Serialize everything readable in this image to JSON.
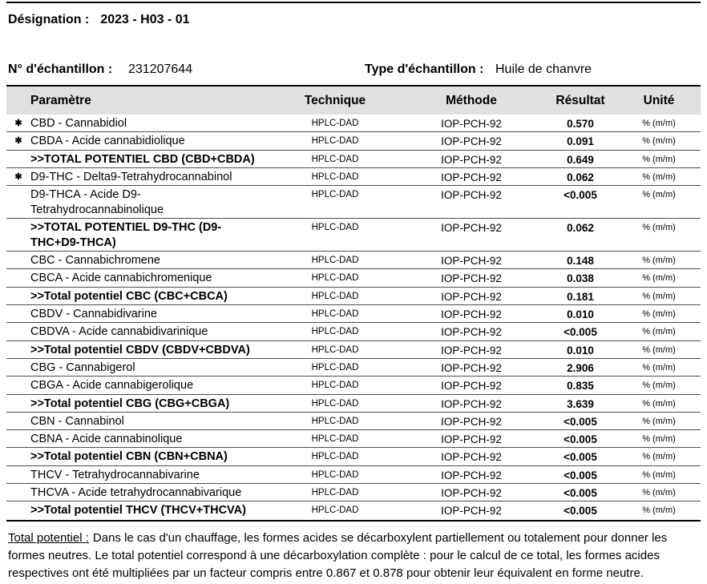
{
  "meta": {
    "designation_label": "Désignation :",
    "designation_value": "2023 - H03 - 01",
    "sample_number_label": "N° d'échantillon :",
    "sample_number_value": "231207644",
    "sample_type_label": "Type d'échantillon :",
    "sample_type_value": "Huile de chanvre"
  },
  "colors": {
    "header_bg": "#e0e0e0",
    "row_line": "#4d4d4d",
    "border_black": "#000000"
  },
  "table": {
    "star_marker": "✱",
    "headers": [
      "Paramètre",
      "Technique",
      "Méthode",
      "Résultat",
      "Unité"
    ],
    "rows": [
      {
        "star": true,
        "bold": false,
        "param": ">>",
        "technique": "HPLC-DAD",
        "methode": "IOP-PCH-92",
        "resultat": "0.570",
        "unite": "% (m/m)"
      },
      {
        "star": true,
        "bold": false,
        "param": ">>",
        "technique": "HPLC-DAD",
        "methode": "IOP-PCH-92",
        "resultat": "0.091",
        "unite": "% (m/m)"
      },
      {
        "star": false,
        "bold": true,
        "param": ">>TOTAL POTENTIEL CBD (CBD+CBDA)",
        "technique": "HPLC-DAD",
        "methode": "IOP-PCH-92",
        "resultat": "0.649",
        "unite": "% (m/m)"
      },
      {
        "star": true,
        "bold": false,
        "param": "D9-THC - Delta9-Tetrahydrocannabinol",
        "technique": "HPLC-DAD",
        "methode": "IOP-PCH-92",
        "resultat": "0.062",
        "unite": "% (m/m)"
      },
      {
        "star": false,
        "bold": false,
        "param": "D9-THCA - Acide D9-Tetrahydrocannabinolique",
        "technique": "HPLC-DAD",
        "methode": "IOP-PCH-92",
        "resultat": "<0.005",
        "unite": "% (m/m)"
      },
      {
        "star": false,
        "bold": true,
        "param": ">>TOTAL POTENTIEL D9-THC (D9-THC+D9-THCA)",
        "technique": "HPLC-DAD",
        "methode": "IOP-PCH-92",
        "resultat": "0.062",
        "unite": "% (m/m)"
      },
      {
        "star": false,
        "bold": false,
        "param": "CBC - Cannabichromene",
        "technique": "HPLC-DAD",
        "methode": "IOP-PCH-92",
        "resultat": "0.148",
        "unite": "% (m/m)"
      },
      {
        "star": false,
        "bold": false,
        "param": "CBCA - Acide cannabichromenique",
        "technique": "HPLC-DAD",
        "methode": "IOP-PCH-92",
        "resultat": "0.038",
        "unite": "% (m/m)"
      },
      {
        "star": false,
        "bold": true,
        "param": ">>Total potentiel CBC (CBC+CBCA)",
        "technique": "HPLC-DAD",
        "methode": "IOP-PCH-92",
        "resultat": "0.181",
        "unite": "% (m/m)"
      },
      {
        "star": false,
        "bold": false,
        "param": "CBDV - Cannabidivarine",
        "technique": "HPLC-DAD",
        "methode": "IOP-PCH-92",
        "resultat": "0.010",
        "unite": "% (m/m)"
      },
      {
        "star": false,
        "bold": false,
        "param": "CBDVA - Acide cannabidivarinique",
        "technique": "HPLC-DAD",
        "methode": "IOP-PCH-92",
        "resultat": "<0.005",
        "unite": "% (m/m)"
      },
      {
        "star": false,
        "bold": true,
        "param": ">>Total potentiel CBDV (CBDV+CBDVA)",
        "technique": "HPLC-DAD",
        "methode": "IOP-PCH-92",
        "resultat": "0.010",
        "unite": "% (m/m)"
      },
      {
        "star": false,
        "bold": false,
        "param": "CBG - Cannabigerol",
        "technique": "HPLC-DAD",
        "methode": "IOP-PCH-92",
        "resultat": "2.906",
        "unite": "% (m/m)"
      },
      {
        "star": false,
        "bold": false,
        "param": "CBGA - Acide cannabigerolique",
        "technique": "HPLC-DAD",
        "methode": "IOP-PCH-92",
        "resultat": "0.835",
        "unite": "% (m/m)"
      },
      {
        "star": false,
        "bold": true,
        "param": ">>Total potentiel CBG (CBG+CBGA)",
        "technique": "HPLC-DAD",
        "methode": "IOP-PCH-92",
        "resultat": "3.639",
        "unite": "% (m/m)"
      },
      {
        "star": false,
        "bold": false,
        "param": "CBN - Cannabinol",
        "technique": "HPLC-DAD",
        "methode": "IOP-PCH-92",
        "resultat": "<0.005",
        "unite": "% (m/m)"
      },
      {
        "star": false,
        "bold": false,
        "param": "CBNA - Acide cannabinolique",
        "technique": "HPLC-DAD",
        "methode": "IOP-PCH-92",
        "resultat": "<0.005",
        "unite": "% (m/m)"
      },
      {
        "star": false,
        "bold": true,
        "param": ">>Total potentiel CBN (CBN+CBNA)",
        "technique": "HPLC-DAD",
        "methode": "IOP-PCH-92",
        "resultat": "<0.005",
        "unite": "% (m/m)"
      },
      {
        "star": false,
        "bold": false,
        "param": "THCV - Tetrahydrocannabivarine",
        "technique": "HPLC-DAD",
        "methode": "IOP-PCH-92",
        "resultat": "<0.005",
        "unite": "% (m/m)"
      },
      {
        "star": false,
        "bold": false,
        "param": "THCVA - Acide tetrahydrocannabivarique",
        "technique": "HPLC-DAD",
        "methode": "IOP-PCH-92",
        "resultat": "<0.005",
        "unite": "% (m/m)"
      },
      {
        "star": false,
        "bold": true,
        "param": ">>Total potentiel THCV (THCV+THCVA)",
        "technique": "HPLC-DAD",
        "methode": "IOP-PCH-92",
        "resultat": "<0.005",
        "unite": "% (m/m)"
      }
    ],
    "row_params_fix": {
      "0": "CBD - Cannabidiol",
      "1": "CBDA - Acide cannabidiolique"
    }
  },
  "footer": {
    "label": "Total potentiel :",
    "line1_rest": "Dans le cas d'un chauffage, les formes acides se décarboxylent partiellement ou totalement pour donner les",
    "line2": "formes neutres. Le total potentiel correspond à une décarboxylation complète : pour le calcul de ce total, les formes acides",
    "line3": "respectives ont été multipliées par un facteur compris entre 0.867 et 0.878 pour obtenir leur équivalent en forme neutre."
  }
}
